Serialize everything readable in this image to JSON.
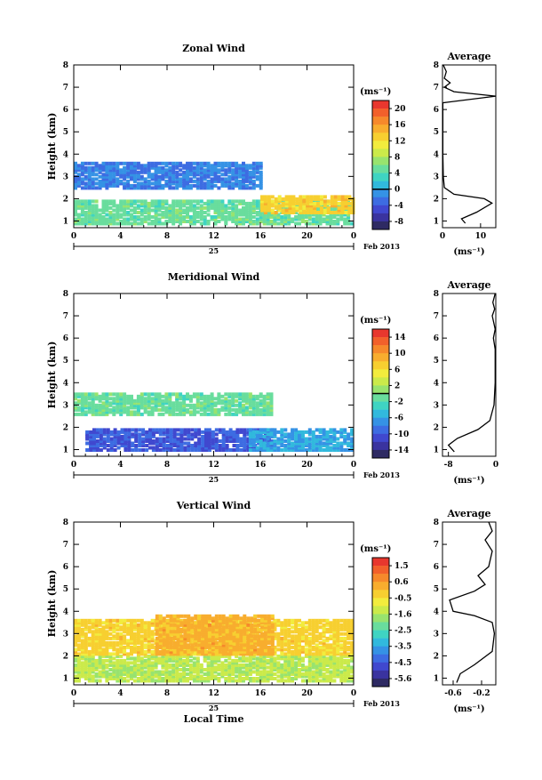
{
  "chart_data": [
    {
      "type": "heatmap",
      "title": "Zonal Wind",
      "ylabel": "Height (km)",
      "xlabel": "",
      "x_ticks": [
        "0",
        "4",
        "8",
        "12",
        "16",
        "20",
        "0"
      ],
      "y_ticks": [
        "1",
        "2",
        "3",
        "4",
        "5",
        "6",
        "7",
        "8"
      ],
      "xlim": [
        0,
        24
      ],
      "ylim": [
        0.7,
        8
      ],
      "date_day": "25",
      "date_month": "Feb 2013",
      "colorbar_unit": "(ms⁻¹)",
      "colorbar_ticks": [
        "20",
        "16",
        "12",
        "8",
        "4",
        "0",
        "-4",
        "-8"
      ],
      "colorbar_range": [
        -10,
        22
      ],
      "colorbar_marker": 0,
      "regions": [
        {
          "x": [
            0,
            24
          ],
          "y": [
            0.8,
            1.9
          ],
          "value": 5
        },
        {
          "x": [
            0,
            16
          ],
          "y": [
            2.4,
            3.6
          ],
          "value": -2
        },
        {
          "x": [
            16,
            24
          ],
          "y": [
            1.3,
            2.1
          ],
          "value": 13
        }
      ],
      "profile": {
        "title": "Average",
        "xlabel": "(ms⁻¹)",
        "x_ticks": [
          "0",
          "10"
        ],
        "xlim": [
          0,
          14
        ],
        "ylim": [
          0.7,
          8
        ],
        "points": [
          [
            6,
            0.9
          ],
          [
            5,
            1.1
          ],
          [
            9,
            1.4
          ],
          [
            13,
            1.8
          ],
          [
            11,
            2.0
          ],
          [
            3,
            2.2
          ],
          [
            0.5,
            2.5
          ],
          [
            0.2,
            3.0
          ],
          [
            0.1,
            4.0
          ],
          [
            0.1,
            5.0
          ],
          [
            0.1,
            6.3
          ],
          [
            14,
            6.6
          ],
          [
            3,
            6.8
          ],
          [
            0.5,
            7.0
          ],
          [
            2,
            7.2
          ],
          [
            0.5,
            7.4
          ],
          [
            1,
            7.7
          ],
          [
            0.2,
            8.0
          ]
        ]
      }
    },
    {
      "type": "heatmap",
      "title": "Meridional Wind",
      "ylabel": "Height (km)",
      "xlabel": "",
      "x_ticks": [
        "0",
        "4",
        "8",
        "12",
        "16",
        "20",
        "0"
      ],
      "y_ticks": [
        "1",
        "2",
        "3",
        "4",
        "5",
        "6",
        "7",
        "8"
      ],
      "xlim": [
        0,
        24
      ],
      "ylim": [
        0.7,
        8
      ],
      "date_day": "25",
      "date_month": "Feb 2013",
      "colorbar_unit": "(ms⁻¹)",
      "colorbar_ticks": [
        "14",
        "10",
        "6",
        "2",
        "-2",
        "-6",
        "-10",
        "-14"
      ],
      "colorbar_range": [
        -16,
        16
      ],
      "colorbar_marker": 0,
      "regions": [
        {
          "x": [
            1,
            17
          ],
          "y": [
            0.9,
            1.9
          ],
          "value": -10
        },
        {
          "x": [
            15,
            24
          ],
          "y": [
            0.9,
            1.9
          ],
          "value": -6
        },
        {
          "x": [
            0,
            17
          ],
          "y": [
            2.5,
            3.5
          ],
          "value": -1
        }
      ],
      "profile": {
        "title": "Average",
        "xlabel": "(ms⁻¹)",
        "x_ticks": [
          "-8",
          "0"
        ],
        "xlim": [
          -9,
          0
        ],
        "ylim": [
          0.7,
          8
        ],
        "points": [
          [
            -7,
            0.9
          ],
          [
            -8,
            1.2
          ],
          [
            -6.5,
            1.5
          ],
          [
            -3,
            1.9
          ],
          [
            -1,
            2.3
          ],
          [
            -0.3,
            3.0
          ],
          [
            -0.1,
            4.0
          ],
          [
            -0.1,
            5.5
          ],
          [
            -0.4,
            6.0
          ],
          [
            -0.1,
            6.4
          ],
          [
            -0.6,
            7.0
          ],
          [
            -0.2,
            7.3
          ],
          [
            -0.5,
            7.6
          ],
          [
            -0.1,
            8.0
          ]
        ]
      }
    },
    {
      "type": "heatmap",
      "title": "Vertical Wind",
      "ylabel": "Height (km)",
      "xlabel": "Local Time",
      "x_ticks": [
        "0",
        "4",
        "8",
        "12",
        "16",
        "20",
        "0"
      ],
      "y_ticks": [
        "1",
        "2",
        "3",
        "4",
        "5",
        "6",
        "7",
        "8"
      ],
      "xlim": [
        0,
        24
      ],
      "ylim": [
        0.7,
        8
      ],
      "date_day": "25",
      "date_month": "Feb 2013",
      "colorbar_unit": "(ms⁻¹)",
      "colorbar_ticks": [
        "1.5",
        "0.6",
        "-0.5",
        "-1.6",
        "-2.5",
        "-3.5",
        "-4.5",
        "-5.6"
      ],
      "colorbar_range": [
        -6,
        2
      ],
      "regions": [
        {
          "x": [
            0,
            24
          ],
          "y": [
            0.8,
            2.0
          ],
          "value": -1.4
        },
        {
          "x": [
            0,
            24
          ],
          "y": [
            2.0,
            3.6
          ],
          "value": -0.3
        },
        {
          "x": [
            7,
            17
          ],
          "y": [
            2.0,
            3.8
          ],
          "value": 0.2
        }
      ],
      "profile": {
        "title": "Average",
        "xlabel": "(ms⁻¹)",
        "x_ticks": [
          "-0.6",
          "-0.2"
        ],
        "xlim": [
          -0.75,
          0
        ],
        "ylim": [
          0.7,
          8
        ],
        "points": [
          [
            -0.55,
            0.8
          ],
          [
            -0.5,
            1.2
          ],
          [
            -0.3,
            1.6
          ],
          [
            -0.05,
            2.2
          ],
          [
            -0.02,
            3.0
          ],
          [
            -0.05,
            3.5
          ],
          [
            -0.3,
            3.8
          ],
          [
            -0.6,
            4.0
          ],
          [
            -0.65,
            4.5
          ],
          [
            -0.3,
            4.9
          ],
          [
            -0.15,
            5.2
          ],
          [
            -0.25,
            5.6
          ],
          [
            -0.1,
            6.0
          ],
          [
            -0.05,
            6.7
          ],
          [
            -0.15,
            7.2
          ],
          [
            -0.05,
            7.6
          ],
          [
            -0.1,
            8.0
          ]
        ]
      }
    }
  ]
}
